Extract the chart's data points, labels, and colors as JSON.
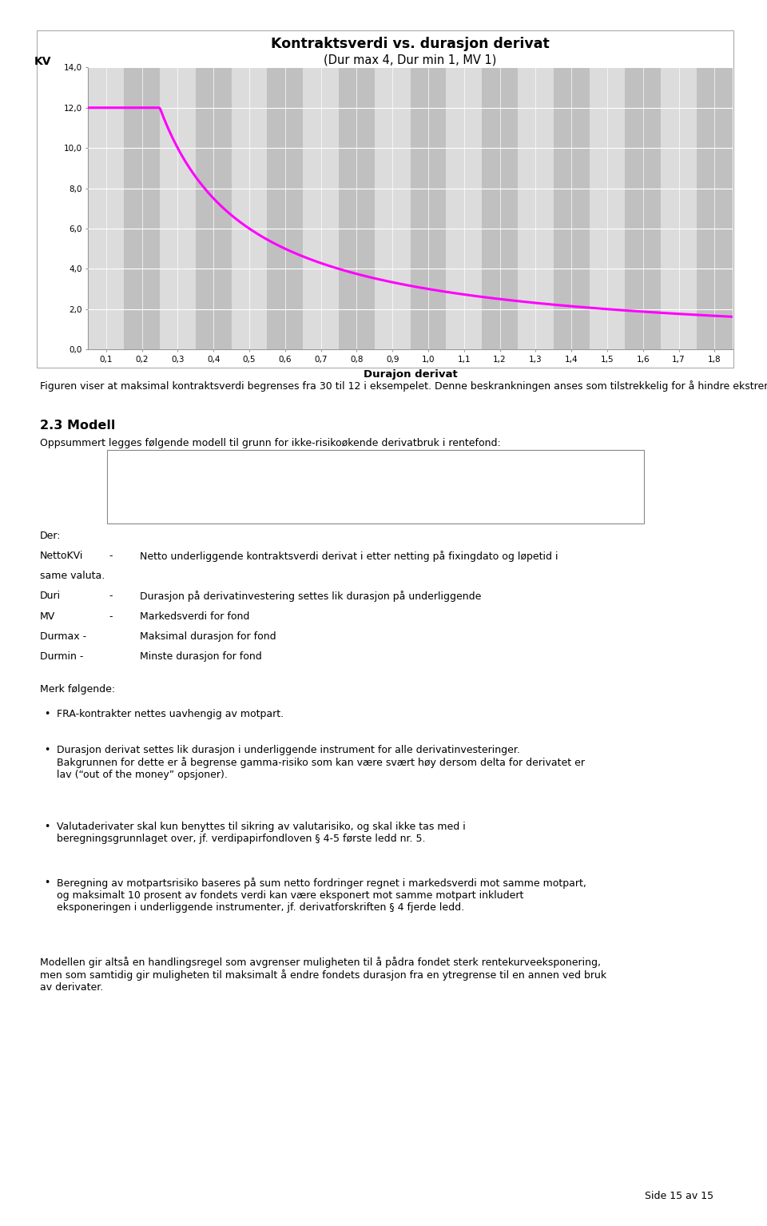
{
  "title_line1": "Kontraktsverdi vs. durasjon derivat",
  "title_line2": "(Dur max 4, Dur min 1, MV 1)",
  "xlabel": "Durajon derivat",
  "ylabel": "KV",
  "yticks": [
    0.0,
    2.0,
    4.0,
    6.0,
    8.0,
    10.0,
    12.0,
    14.0
  ],
  "xticks": [
    0.1,
    0.2,
    0.3,
    0.4,
    0.5,
    0.6,
    0.7,
    0.8,
    0.9,
    1.0,
    1.1,
    1.2,
    1.3,
    1.4,
    1.5,
    1.6,
    1.7,
    1.8
  ],
  "ylim": [
    0.0,
    14.0
  ],
  "xlim": [
    0.05,
    1.85
  ],
  "line_color": "#FF00FF",
  "line_width": 2.2,
  "chart_bg_light": "#DCDCDC",
  "chart_bg_dark": "#C0C0C0",
  "page_bg_color": "#FFFFFF",
  "grid_color": "#FFFFFF",
  "para1": "Figuren viser at maksimal kontraktsverdi begrenses fra 30 til 12 i eksempelet. Denne beskrankningen anses som tilstrekkelig for å hindre ekstreme utslag som følge av sterk punkteksponering i den korte enden av rentekurven.",
  "section_title": "2.3 Modell",
  "section_intro": "Oppsummert legges følgende modell til grunn for ikke-risikoøkende derivatbruk i rentefond:",
  "der_label": "Der:",
  "der_rows": [
    [
      "NettoKVi",
      "-",
      "Netto underliggende kontraktsverdi derivat i etter netting på fixingdato og løpetid i"
    ],
    [
      "same valuta.",
      "",
      ""
    ],
    [
      "Duri",
      "-",
      "Durasjon på derivatinvestering settes lik durasjon på underliggende"
    ],
    [
      "MV",
      "-",
      "Markedsverdi for fond"
    ],
    [
      "Durmax -",
      "",
      "Maksimal durasjon for fond"
    ],
    [
      "Durmin -",
      "",
      "Minste durasjon for fond"
    ]
  ],
  "merk_title": "Merk følgende:",
  "bullets": [
    "FRA-kontrakter nettes uavhengig av motpart.",
    "Durasjon derivat settes lik durasjon i underliggende instrument for alle derivatinvesteringer.\nBakgrunnen for dette er å begrense gamma-risiko som kan være svært høy dersom delta for derivatet er\nlav (“out of the money” opsjoner).",
    "Valutaderivater skal kun benyttes til sikring av valutarisiko, og skal ikke tas med i\nberegningsgrunnlaget over, jf. verdipapirfondloven § 4-5 første ledd nr. 5.",
    "Beregning av motpartsrisiko baseres på sum netto fordringer regnet i markedsverdi mot samme motpart,\nog maksimalt 10 prosent av fondets verdi kan være eksponert mot samme motpart inkludert\neksponeringen i underliggende instrumenter, jf. derivatforskriften § 4 fjerde ledd."
  ],
  "closing_para": "Modellen gir altså en handlingsregel som avgrenser muligheten til å pådra fondet sterk rentekurveeksponering,\nmen som samtidig gir muligheten til maksimalt å endre fondets durasjon fra en ytregrense til en annen ved bruk\nav derivater.",
  "page_footer": "Side 15 av 15",
  "body_fontsize": 9.0,
  "title_fontsize": 12.5,
  "subtitle_fontsize": 10.5,
  "section_fontsize": 11.5
}
